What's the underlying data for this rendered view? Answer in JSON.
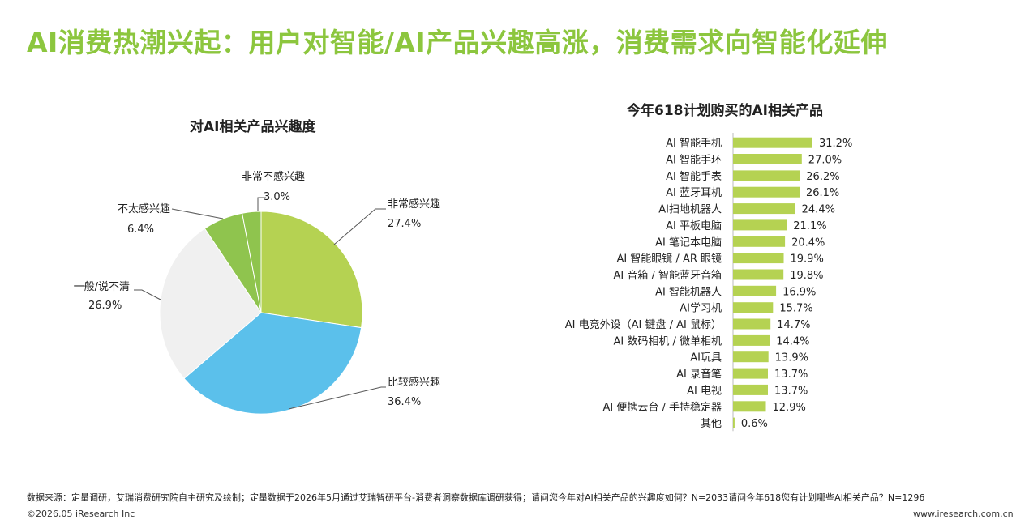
{
  "header": {
    "title": "AI消费热潮兴起：用户对智能/AI产品兴趣高涨，消费需求向智能化延伸"
  },
  "chart_data": [
    {
      "type": "pie",
      "title": "对AI相关产品兴趣度",
      "slices": [
        {
          "label": "非常感兴趣",
          "value": 27.4,
          "display": "27.4%",
          "color": "#b5d252"
        },
        {
          "label": "比较感兴趣",
          "value": 36.4,
          "display": "36.4%",
          "color": "#5bc0eb"
        },
        {
          "label": "一般/说不清",
          "value": 26.9,
          "display": "26.9%",
          "color": "#f0f0f0"
        },
        {
          "label": "不太感兴趣",
          "value": 6.4,
          "display": "6.4%",
          "color": "#8fc44e"
        },
        {
          "label": "非常不感兴趣",
          "value": 3.0,
          "display": "3.0%",
          "color": "#8fc44e"
        }
      ]
    },
    {
      "type": "bar",
      "orientation": "horizontal",
      "title": "今年618计划购买的AI相关产品",
      "bar_color": "#b5d252",
      "categories": [
        "AI 智能手机",
        "AI 智能手环",
        "AI 智能手表",
        "AI 蓝牙耳机",
        "AI扫地机器人",
        "AI 平板电脑",
        "AI 笔记本电脑",
        "AI 智能眼镜 / AR 眼镜",
        "AI 音箱 / 智能蓝牙音箱",
        "AI 智能机器人",
        "AI学习机",
        "AI 电竞外设（AI 键盘 / AI 鼠标）",
        "AI 数码相机 / 微单相机",
        "AI玩具",
        "AI 录音笔",
        "AI 电视",
        "AI 便携云台 / 手持稳定器",
        "其他"
      ],
      "values": [
        31.2,
        27.0,
        26.2,
        26.1,
        24.4,
        21.1,
        20.4,
        19.9,
        19.8,
        16.9,
        15.7,
        14.7,
        14.4,
        13.9,
        13.7,
        13.7,
        12.9,
        0.6
      ],
      "labels": [
        "31.2%",
        "27.0%",
        "26.2%",
        "26.1%",
        "24.4%",
        "21.1%",
        "20.4%",
        "19.9%",
        "19.8%",
        "16.9%",
        "15.7%",
        "14.7%",
        "14.4%",
        "13.9%",
        "13.7%",
        "13.7%",
        "12.9%",
        "0.6%"
      ]
    }
  ],
  "footer": {
    "source": "数据来源：定量调研，艾瑞消费研究院自主研究及绘制；定量数据于2026年5月通过艾瑞智研平台-消费者洞察数据库调研获得；请问您今年对AI相关产品的兴趣度如何？N=2033请问今年618您有计划哪些AI相关产品？N=1296",
    "copyright": "©2026.05 iResearch Inc",
    "website": "www.iresearch.com.cn"
  }
}
